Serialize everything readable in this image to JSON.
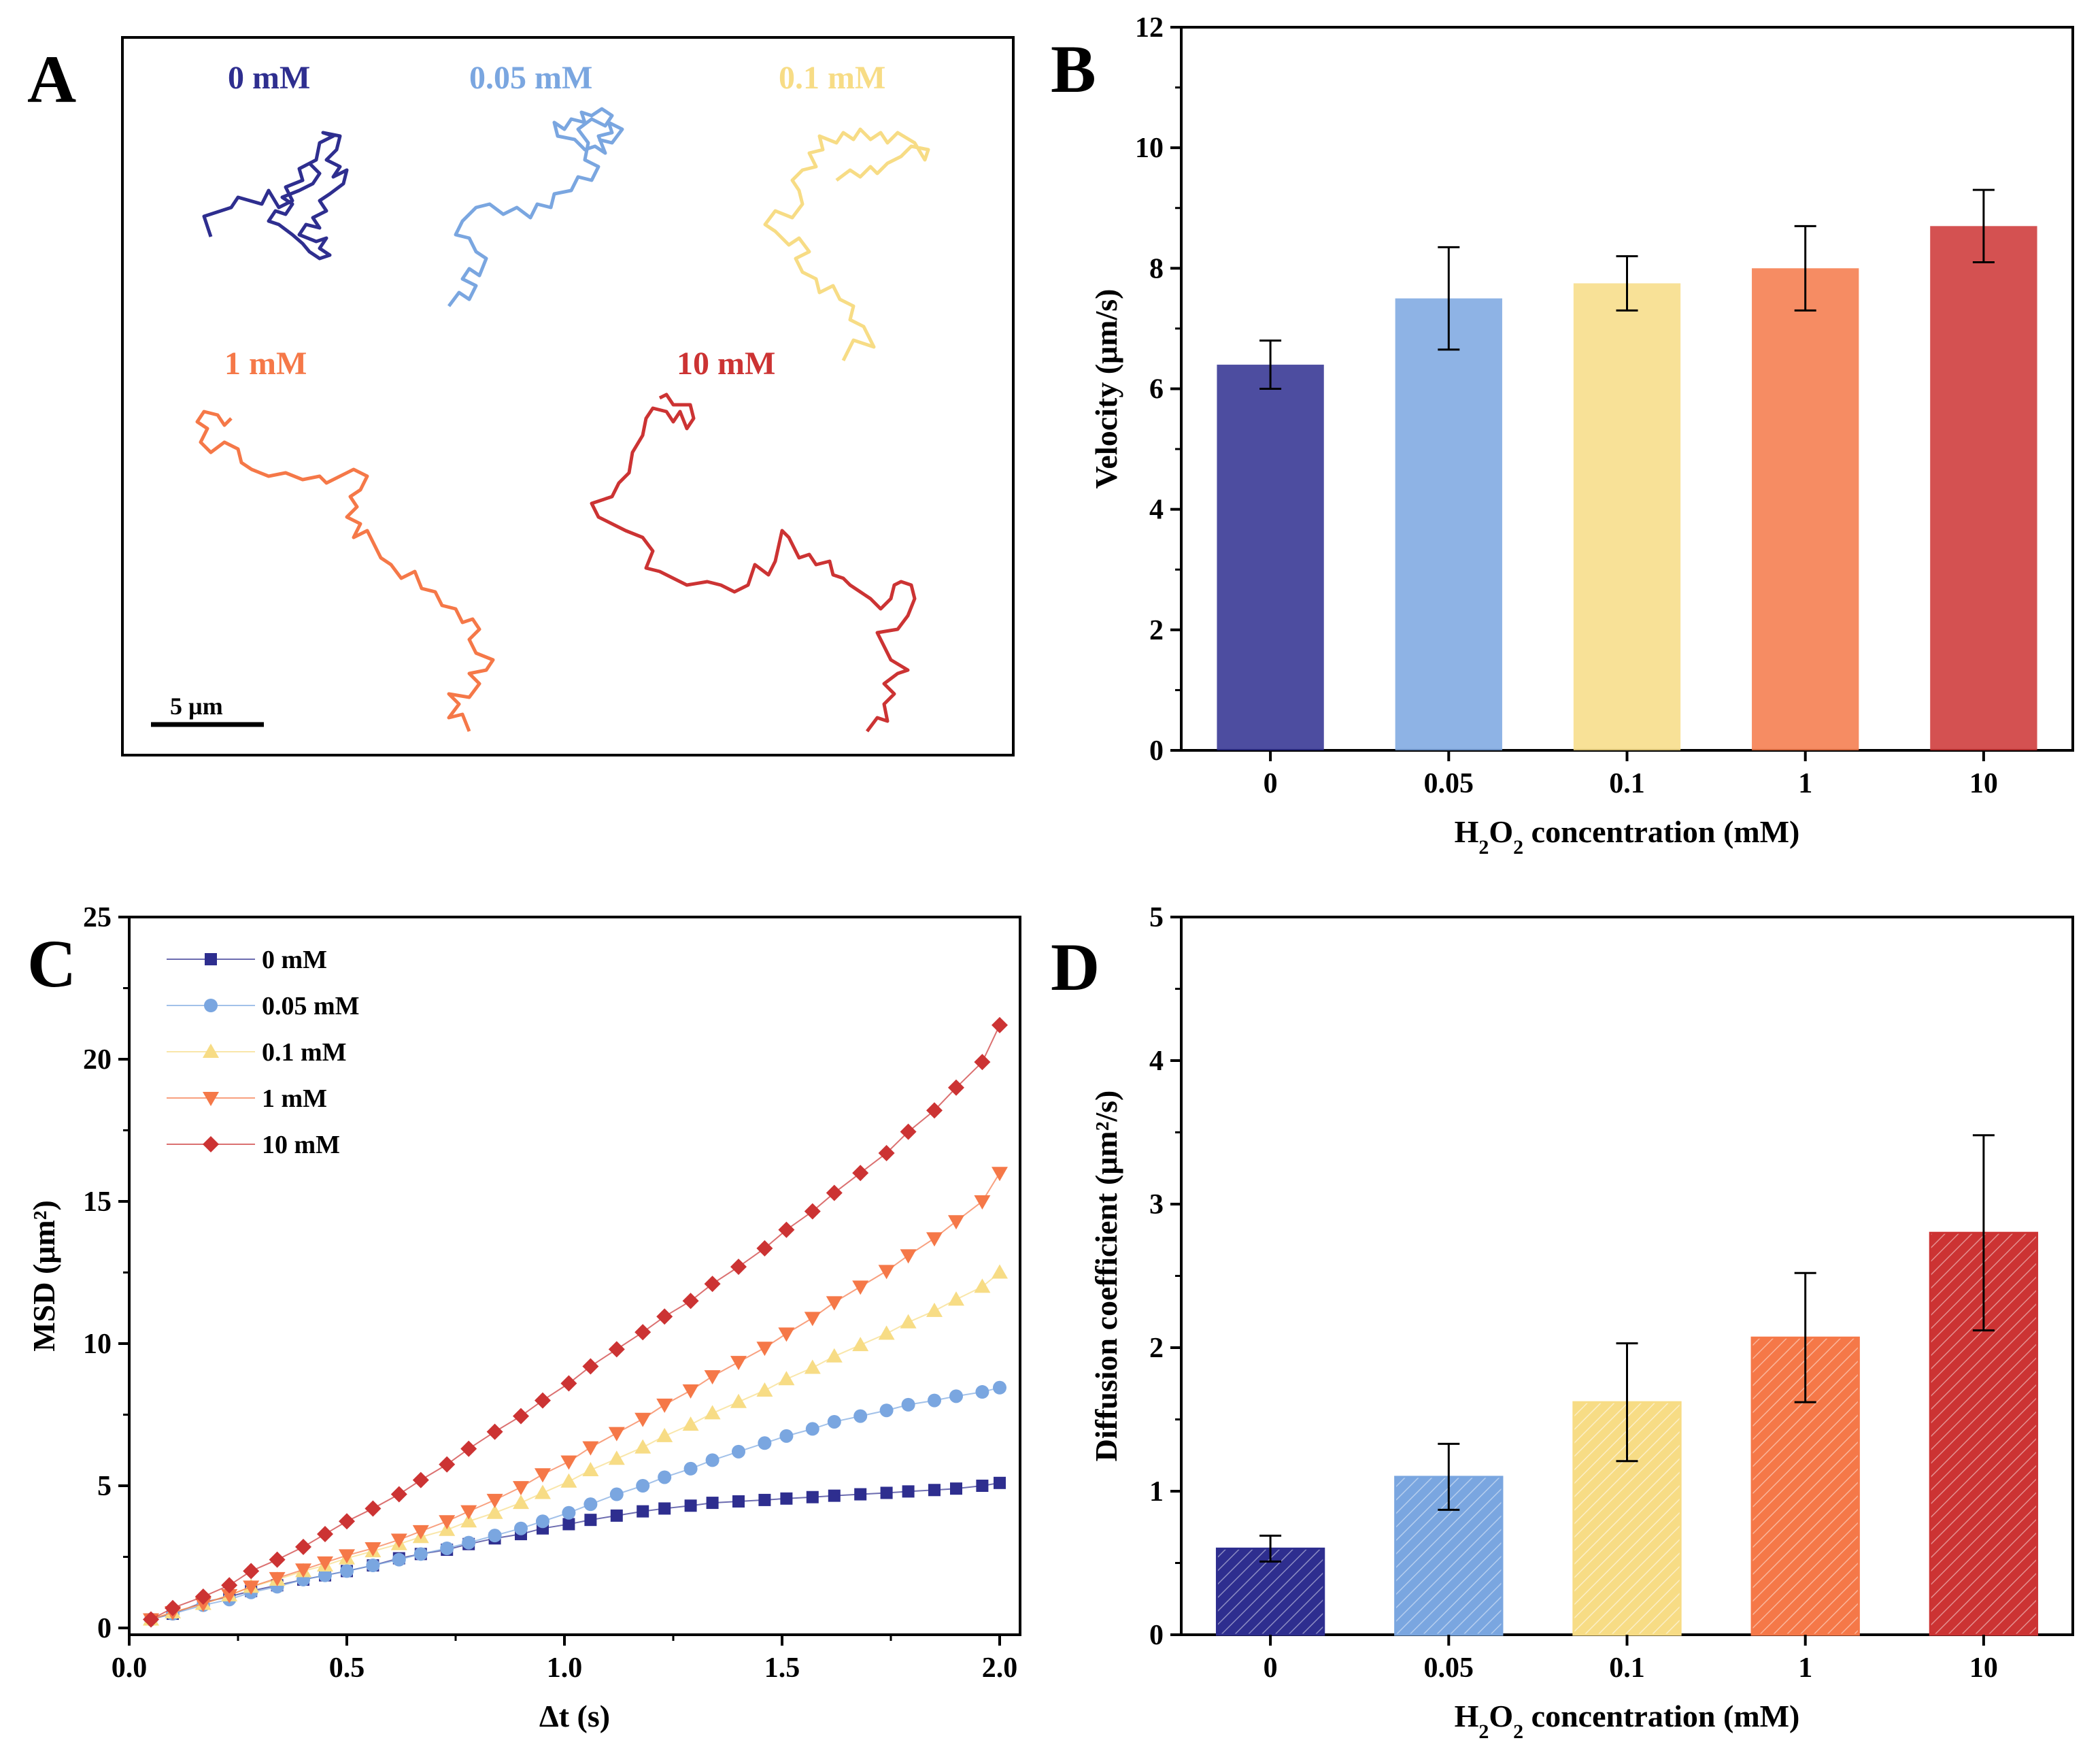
{
  "panel_labels": [
    "A",
    "B",
    "C",
    "D"
  ],
  "colors": [
    "#2e2e8f",
    "#7aa6e0",
    "#f7dc85",
    "#f57848",
    "#cc3333"
  ],
  "panel_a": {
    "labels": [
      "0 mM",
      "0.05 mM",
      "0.1 mM",
      "1 mM",
      "10 mM"
    ],
    "scale_bar": "5 µm"
  },
  "chart_data": [
    {
      "panel": "B",
      "type": "bar",
      "categories": [
        "0",
        "0.05",
        "0.1",
        "1",
        "10"
      ],
      "values": [
        6.4,
        7.5,
        7.75,
        8.0,
        8.7
      ],
      "errors": [
        0.4,
        0.85,
        0.45,
        0.7,
        0.6
      ],
      "ylim": [
        0,
        12
      ],
      "yticks": [
        "0",
        "2",
        "4",
        "6",
        "8",
        "10",
        "12"
      ],
      "xlabel": "H2O2 concentration (mM)",
      "ylabel": "Velocity (μm/s)",
      "hatched": false
    },
    {
      "panel": "C",
      "type": "line",
      "xlabel": "Δt (s)",
      "ylabel": "MSD (μm²)",
      "xlim": [
        0,
        2.0
      ],
      "ylim": [
        0,
        25
      ],
      "xticks": [
        "0.0",
        "0.5",
        "1.0",
        "1.5",
        "2.0"
      ],
      "yticks": [
        "0",
        "5",
        "10",
        "15",
        "20",
        "25"
      ],
      "legend_position": "top-left",
      "series": [
        {
          "name": "0 mM",
          "marker": "square",
          "x": [
            0.05,
            0.1,
            0.17,
            0.23,
            0.28,
            0.34,
            0.4,
            0.45,
            0.5,
            0.56,
            0.62,
            0.67,
            0.73,
            0.78,
            0.84,
            0.9,
            0.95,
            1.01,
            1.06,
            1.12,
            1.18,
            1.23,
            1.29,
            1.34,
            1.4,
            1.46,
            1.51,
            1.57,
            1.62,
            1.68,
            1.74,
            1.79,
            1.85,
            1.9,
            1.96,
            2.0
          ],
          "y": [
            0.3,
            0.5,
            0.9,
            1.1,
            1.3,
            1.5,
            1.7,
            1.85,
            2.0,
            2.2,
            2.45,
            2.6,
            2.75,
            2.95,
            3.15,
            3.3,
            3.5,
            3.65,
            3.8,
            3.95,
            4.1,
            4.2,
            4.3,
            4.4,
            4.45,
            4.5,
            4.55,
            4.6,
            4.65,
            4.7,
            4.75,
            4.8,
            4.85,
            4.9,
            5.0,
            5.1
          ]
        },
        {
          "name": "0.05 mM",
          "marker": "circle",
          "x": [
            0.05,
            0.1,
            0.17,
            0.23,
            0.28,
            0.34,
            0.4,
            0.45,
            0.5,
            0.56,
            0.62,
            0.67,
            0.73,
            0.78,
            0.84,
            0.9,
            0.95,
            1.01,
            1.06,
            1.12,
            1.18,
            1.23,
            1.29,
            1.34,
            1.4,
            1.46,
            1.51,
            1.57,
            1.62,
            1.68,
            1.74,
            1.79,
            1.85,
            1.9,
            1.96,
            2.0
          ],
          "y": [
            0.3,
            0.5,
            0.8,
            1.0,
            1.25,
            1.45,
            1.7,
            1.85,
            2.0,
            2.2,
            2.4,
            2.6,
            2.8,
            3.0,
            3.25,
            3.5,
            3.75,
            4.05,
            4.35,
            4.7,
            5.0,
            5.3,
            5.6,
            5.9,
            6.2,
            6.5,
            6.75,
            7.0,
            7.25,
            7.45,
            7.65,
            7.85,
            8.0,
            8.15,
            8.3,
            8.45
          ]
        },
        {
          "name": "0.1 mM",
          "marker": "triangle-up",
          "x": [
            0.05,
            0.1,
            0.17,
            0.23,
            0.28,
            0.34,
            0.4,
            0.45,
            0.5,
            0.56,
            0.62,
            0.67,
            0.73,
            0.78,
            0.84,
            0.9,
            0.95,
            1.01,
            1.06,
            1.12,
            1.18,
            1.23,
            1.29,
            1.34,
            1.4,
            1.46,
            1.51,
            1.57,
            1.62,
            1.68,
            1.74,
            1.79,
            1.85,
            1.9,
            1.96,
            2.0
          ],
          "y": [
            0.3,
            0.55,
            0.85,
            1.15,
            1.45,
            1.7,
            2.0,
            2.2,
            2.45,
            2.7,
            2.95,
            3.2,
            3.45,
            3.75,
            4.05,
            4.4,
            4.75,
            5.15,
            5.55,
            5.95,
            6.35,
            6.75,
            7.15,
            7.55,
            7.95,
            8.35,
            8.75,
            9.15,
            9.55,
            9.95,
            10.35,
            10.75,
            11.15,
            11.55,
            12.0,
            12.5
          ]
        },
        {
          "name": "1 mM",
          "marker": "triangle-down",
          "x": [
            0.05,
            0.1,
            0.17,
            0.23,
            0.28,
            0.34,
            0.4,
            0.45,
            0.5,
            0.56,
            0.62,
            0.67,
            0.73,
            0.78,
            0.84,
            0.9,
            0.95,
            1.01,
            1.06,
            1.12,
            1.18,
            1.23,
            1.29,
            1.34,
            1.4,
            1.46,
            1.51,
            1.57,
            1.62,
            1.68,
            1.74,
            1.79,
            1.85,
            1.9,
            1.96,
            2.0
          ],
          "y": [
            0.3,
            0.55,
            0.85,
            1.15,
            1.45,
            1.75,
            2.05,
            2.3,
            2.55,
            2.8,
            3.1,
            3.4,
            3.75,
            4.1,
            4.5,
            4.95,
            5.4,
            5.85,
            6.35,
            6.85,
            7.35,
            7.85,
            8.35,
            8.85,
            9.35,
            9.85,
            10.35,
            10.9,
            11.45,
            12.0,
            12.55,
            13.1,
            13.7,
            14.3,
            15.0,
            16.0
          ]
        },
        {
          "name": "10 mM",
          "marker": "diamond",
          "x": [
            0.05,
            0.1,
            0.17,
            0.23,
            0.28,
            0.34,
            0.4,
            0.45,
            0.5,
            0.56,
            0.62,
            0.67,
            0.73,
            0.78,
            0.84,
            0.9,
            0.95,
            1.01,
            1.06,
            1.12,
            1.18,
            1.23,
            1.29,
            1.34,
            1.4,
            1.46,
            1.51,
            1.57,
            1.62,
            1.68,
            1.74,
            1.79,
            1.85,
            1.9,
            1.96,
            2.0
          ],
          "y": [
            0.3,
            0.7,
            1.1,
            1.5,
            2.0,
            2.4,
            2.85,
            3.3,
            3.75,
            4.2,
            4.7,
            5.2,
            5.75,
            6.3,
            6.9,
            7.45,
            8.0,
            8.6,
            9.2,
            9.8,
            10.4,
            10.95,
            11.5,
            12.1,
            12.7,
            13.35,
            14.0,
            14.65,
            15.3,
            16.0,
            16.7,
            17.45,
            18.2,
            19.0,
            19.9,
            21.2
          ]
        }
      ]
    },
    {
      "panel": "D",
      "type": "bar",
      "categories": [
        "0",
        "0.05",
        "0.1",
        "1",
        "10"
      ],
      "values": [
        0.6,
        1.1,
        1.62,
        2.07,
        2.8
      ],
      "errors": [
        0.09,
        0.23,
        0.41,
        0.45,
        0.68
      ],
      "ylim": [
        0,
        5
      ],
      "yticks": [
        "0",
        "1",
        "2",
        "3",
        "4",
        "5"
      ],
      "xlabel": "H2O2 concentration (mM)",
      "ylabel": "Diffusion coefficient (μm²/s)",
      "hatched": true
    }
  ]
}
